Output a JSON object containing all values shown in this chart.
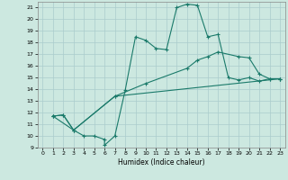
{
  "xlabel": "Humidex (Indice chaleur)",
  "bg_color": "#cce8e0",
  "line_color": "#1a7a6a",
  "grid_color": "#aacccc",
  "xlim": [
    -0.5,
    23.5
  ],
  "ylim": [
    9,
    21.5
  ],
  "xticks": [
    0,
    1,
    2,
    3,
    4,
    5,
    6,
    7,
    8,
    9,
    10,
    11,
    12,
    13,
    14,
    15,
    16,
    17,
    18,
    19,
    20,
    21,
    22,
    23
  ],
  "yticks": [
    9,
    10,
    11,
    12,
    13,
    14,
    15,
    16,
    17,
    18,
    19,
    20,
    21
  ],
  "line1_x": [
    1,
    2,
    3,
    4,
    5,
    6,
    6,
    7,
    8,
    9,
    10,
    11,
    12,
    13,
    14,
    15,
    16,
    17,
    18,
    19,
    20,
    21,
    22,
    23
  ],
  "line1_y": [
    11.7,
    11.8,
    10.5,
    10.0,
    10.0,
    9.7,
    9.2,
    10.0,
    13.9,
    18.5,
    18.2,
    17.5,
    17.4,
    21.0,
    21.3,
    21.2,
    18.5,
    18.7,
    15.0,
    14.8,
    15.0,
    14.7,
    14.9,
    14.9
  ],
  "line2_x": [
    1,
    2,
    3,
    7,
    10,
    14,
    15,
    16,
    17,
    19,
    20,
    21,
    22,
    23
  ],
  "line2_y": [
    11.7,
    11.8,
    10.5,
    13.4,
    14.5,
    15.8,
    16.5,
    16.8,
    17.2,
    16.8,
    16.7,
    15.3,
    14.9,
    14.9
  ],
  "line3_x": [
    1,
    3,
    7,
    23
  ],
  "line3_y": [
    11.7,
    10.5,
    13.4,
    14.9
  ]
}
